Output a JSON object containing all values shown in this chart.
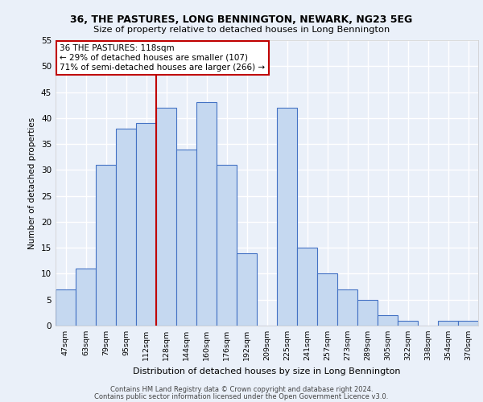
{
  "title1": "36, THE PASTURES, LONG BENNINGTON, NEWARK, NG23 5EG",
  "title2": "Size of property relative to detached houses in Long Bennington",
  "xlabel": "Distribution of detached houses by size in Long Bennington",
  "ylabel": "Number of detached properties",
  "categories": [
    "47sqm",
    "63sqm",
    "79sqm",
    "95sqm",
    "112sqm",
    "128sqm",
    "144sqm",
    "160sqm",
    "176sqm",
    "192sqm",
    "209sqm",
    "225sqm",
    "241sqm",
    "257sqm",
    "273sqm",
    "289sqm",
    "305sqm",
    "322sqm",
    "338sqm",
    "354sqm",
    "370sqm"
  ],
  "values": [
    7,
    11,
    31,
    38,
    39,
    42,
    34,
    43,
    31,
    14,
    0,
    42,
    15,
    10,
    7,
    5,
    2,
    1,
    0,
    1,
    1
  ],
  "bar_color": "#c5d8f0",
  "bar_edge_color": "#4472c4",
  "vline_x_idx": 4.5,
  "vline_color": "#c00000",
  "annotation_line1": "36 THE PASTURES: 118sqm",
  "annotation_line2": "← 29% of detached houses are smaller (107)",
  "annotation_line3": "71% of semi-detached houses are larger (266) →",
  "annotation_box_color": "#ffffff",
  "annotation_box_edge": "#c00000",
  "ylim": [
    0,
    55
  ],
  "yticks": [
    0,
    5,
    10,
    15,
    20,
    25,
    30,
    35,
    40,
    45,
    50,
    55
  ],
  "footer1": "Contains HM Land Registry data © Crown copyright and database right 2024.",
  "footer2": "Contains public sector information licensed under the Open Government Licence v3.0.",
  "bg_color": "#eaf0f9",
  "plot_bg_color": "#eaf0f9",
  "grid_color": "#ffffff"
}
